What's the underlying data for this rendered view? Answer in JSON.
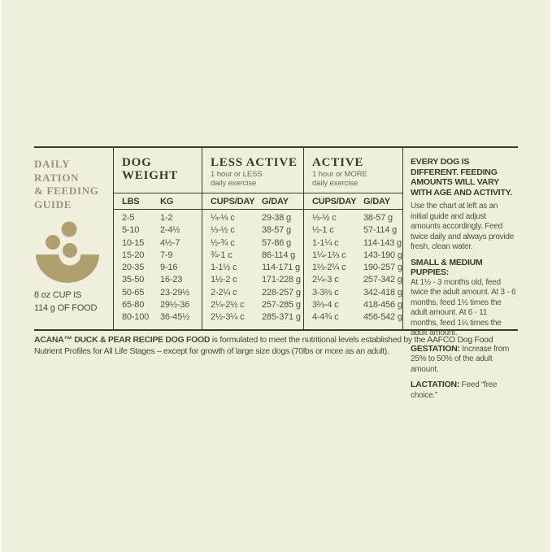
{
  "colors": {
    "paper_bg": "#f0efde",
    "ink_dark": "#3b3a2b",
    "ink_data": "#54513d",
    "accent_tan_text": "#9d9377",
    "accent_tan_icon": "#b1a06f"
  },
  "left_panel": {
    "title_lines": [
      "DAILY RATION",
      "& FEEDING",
      "GUIDE"
    ],
    "bowl_icon": "bowl-with-kibble-icon",
    "cup_note_lines": [
      "8 oz CUP IS",
      "114 g OF FOOD"
    ]
  },
  "table": {
    "sections": [
      {
        "title": "DOG WEIGHT",
        "subtitle_lines": [
          "",
          ""
        ],
        "columns": [
          "LBS",
          "KG"
        ],
        "rows": [
          [
            "2-5",
            "1-2"
          ],
          [
            "5-10",
            "2-4½"
          ],
          [
            "10-15",
            "4½-7"
          ],
          [
            "15-20",
            "7-9"
          ],
          [
            "20-35",
            "9-16"
          ],
          [
            "35-50",
            "16-23"
          ],
          [
            "50-65",
            "23-29½"
          ],
          [
            "65-80",
            "29½-36"
          ],
          [
            "80-100",
            "36-45½"
          ]
        ]
      },
      {
        "title": "LESS ACTIVE",
        "subtitle_lines": [
          "1 hour or LESS",
          "daily exercise"
        ],
        "columns": [
          "CUPS/DAY",
          "G/DAY"
        ],
        "rows": [
          [
            "¼-⅓ c",
            "29-38 g"
          ],
          [
            "⅓-½ c",
            "38-57 g"
          ],
          [
            "½-¾ c",
            "57-86 g"
          ],
          [
            "¾-1 c",
            "86-114 g"
          ],
          [
            "1-1½ c",
            "114-171 g"
          ],
          [
            "1½-2 c",
            "171-228 g"
          ],
          [
            "2-2¼ c",
            "228-257 g"
          ],
          [
            "2¼-2½ c",
            "257-285 g"
          ],
          [
            "2½-3¼ c",
            "285-371 g"
          ]
        ]
      },
      {
        "title": "ACTIVE",
        "subtitle_lines": [
          "1 hour or MORE",
          "daily exercise"
        ],
        "columns": [
          "CUPS/DAY",
          "G/DAY"
        ],
        "rows": [
          [
            "⅓-½ c",
            "38-57 g"
          ],
          [
            "½-1 c",
            "57-114 g"
          ],
          [
            "1-1¼ c",
            "114-143 g"
          ],
          [
            "1¼-1⅔ c",
            "143-190 g"
          ],
          [
            "1⅔-2¼ c",
            "190-257 g"
          ],
          [
            "2¼-3 c",
            "257-342 g"
          ],
          [
            "3-3⅔ c",
            "342-418 g"
          ],
          [
            "3⅔-4 c",
            "418-456 g"
          ],
          [
            "4-4¾ c",
            "456-542 g"
          ]
        ]
      }
    ]
  },
  "notes": {
    "headline": "EVERY DOG IS DIFFERENT. FEEDING AMOUNTS WILL VARY WITH AGE AND ACTIVITY.",
    "intro": "Use the chart at left as an initial guide and adjust amounts accordingly. Feed twice daily and always provide fresh, clean water.",
    "puppies_label": "SMALL & MEDIUM PUPPIES:",
    "puppies_text": "At 1½ - 3 months old, feed twice the adult amount. At 3 - 6 months, feed 1½ times the adult amount. At 6 - 11 months, feed 1¼ times the adult amount.",
    "gestation_label": "GESTATION:",
    "gestation_text": " Increase from 25% to 50% of the adult amount.",
    "lactation_label": "LACTATION:",
    "lactation_text": " Feed “free choice.”"
  },
  "footnote": {
    "bold": "ACANA™ DUCK & PEAR RECIPE DOG FOOD",
    "rest": " is formulated to meet the nutritional levels established by the AAFCO Dog Food Nutrient Profiles for All Life Stages – except for growth of large size dogs (70lbs or more as an adult)."
  }
}
